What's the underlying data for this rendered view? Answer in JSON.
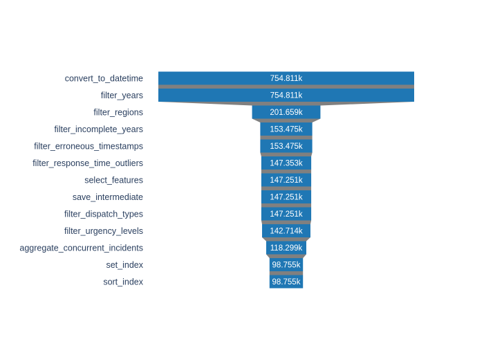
{
  "colors": {
    "bar": "#1f77b4",
    "connector": "#808080",
    "label": "#2a3f5f",
    "bar_text": "#ffffff",
    "background": "#ffffff"
  },
  "chart_data": {
    "type": "funnel",
    "title": "",
    "categories": [
      "convert_to_datetime",
      "filter_years",
      "filter_regions",
      "filter_incomplete_years",
      "filter_erroneous_timestamps",
      "filter_response_time_outliers",
      "select_features",
      "save_intermediate",
      "filter_dispatch_types",
      "filter_urgency_levels",
      "aggregate_concurrent_incidents",
      "set_index",
      "sort_index"
    ],
    "values": [
      754811,
      754811,
      201659,
      153475,
      153475,
      147353,
      147251,
      147251,
      147251,
      142714,
      118299,
      98755,
      98755
    ],
    "text_labels": [
      "754.811k",
      "754.811k",
      "201.659k",
      "153.475k",
      "153.475k",
      "147.353k",
      "147.251k",
      "147.251k",
      "147.251k",
      "142.714k",
      "118.299k",
      "98.755k",
      "98.755k"
    ],
    "legend": "none",
    "grid": false
  }
}
